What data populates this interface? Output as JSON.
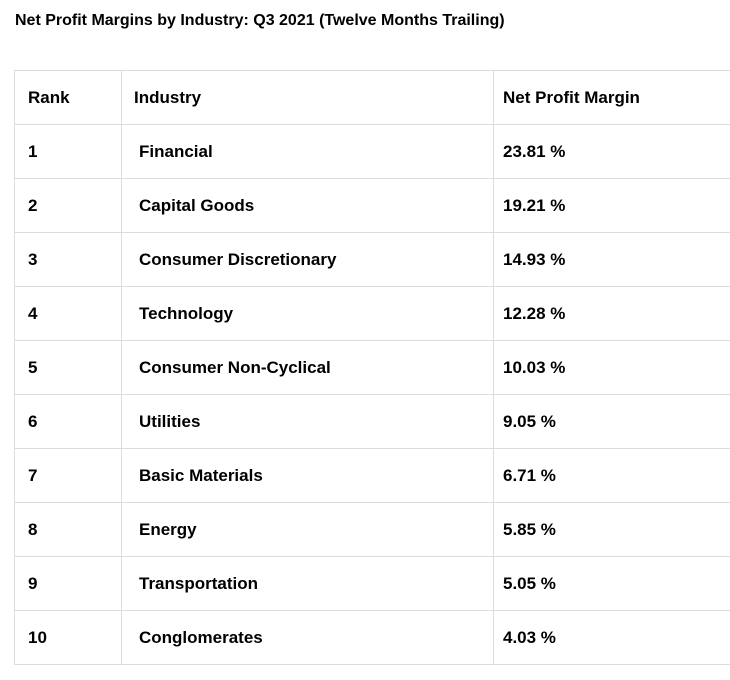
{
  "page": {
    "title": "Net Profit Margins by Industry: Q3 2021 (Twelve Months Trailing)"
  },
  "table": {
    "columns": [
      "Rank",
      "Industry",
      "Net Profit Margin"
    ],
    "rows": [
      {
        "rank": "1",
        "industry": "Financial",
        "margin": "23.81 %"
      },
      {
        "rank": "2",
        "industry": "Capital Goods",
        "margin": "19.21 %"
      },
      {
        "rank": "3",
        "industry": "Consumer Discretionary",
        "margin": "14.93 %"
      },
      {
        "rank": "4",
        "industry": "Technology",
        "margin": "12.28 %"
      },
      {
        "rank": "5",
        "industry": "Consumer Non-Cyclical",
        "margin": "10.03 %"
      },
      {
        "rank": "6",
        "industry": "Utilities",
        "margin": "9.05 %"
      },
      {
        "rank": "7",
        "industry": "Basic Materials",
        "margin": "6.71 %"
      },
      {
        "rank": "8",
        "industry": "Energy",
        "margin": "5.85 %"
      },
      {
        "rank": "9",
        "industry": "Transportation",
        "margin": "5.05 %"
      },
      {
        "rank": "10",
        "industry": "Conglomerates",
        "margin": "4.03 %"
      }
    ]
  },
  "chart_data": {
    "type": "table",
    "title": "Net Profit Margins by Industry: Q3 2021 (Twelve Months Trailing)",
    "columns": [
      "Rank",
      "Industry",
      "Net Profit Margin"
    ],
    "categories": [
      "Financial",
      "Capital Goods",
      "Consumer Discretionary",
      "Technology",
      "Consumer Non-Cyclical",
      "Utilities",
      "Basic Materials",
      "Energy",
      "Transportation",
      "Conglomerates"
    ],
    "values": [
      23.81,
      19.21,
      14.93,
      12.28,
      10.03,
      9.05,
      6.71,
      5.85,
      5.05,
      4.03
    ],
    "unit": "%",
    "ranks": [
      1,
      2,
      3,
      4,
      5,
      6,
      7,
      8,
      9,
      10
    ]
  },
  "colors": {
    "background": "#ffffff",
    "border": "#dcdcdc",
    "text": "#000000"
  }
}
